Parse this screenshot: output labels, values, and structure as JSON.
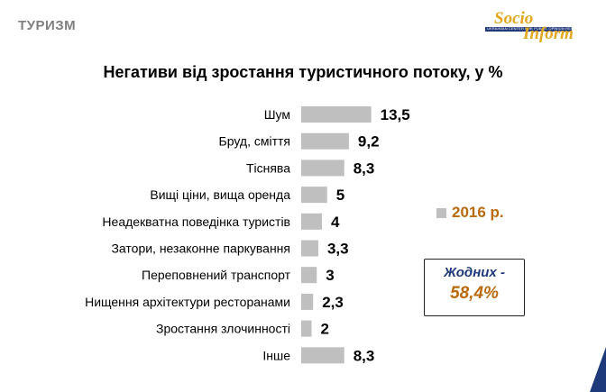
{
  "header": {
    "section_title": "ТУРИЗМ"
  },
  "logo": {
    "top": "Socio",
    "bottom": "Inform",
    "caption": "UKRAINIAN CENTER FOR PUBLIC OPINION RESEARCH"
  },
  "legend": {
    "label": "2016 р."
  },
  "note": {
    "line1": "Жодних -",
    "line2": "58,4%"
  },
  "colors": {
    "bar": "#bfbfbf",
    "accent": "#b96a0d",
    "navy": "#1f3a7a"
  },
  "chart_data": {
    "type": "bar",
    "orientation": "horizontal",
    "title": "Негативи від зростання туристичного потоку, у %",
    "categories": [
      "Шум",
      "Бруд, сміття",
      "Тіснява",
      "Вищі ціни, вища оренда",
      "Неадекватна поведінка туристів",
      "Затори, незаконне паркування",
      "Переповнений транспорт",
      "Нищення архітектури ресторанами",
      "Зростання злочинності",
      "Інше"
    ],
    "values": [
      13.5,
      9.2,
      8.3,
      5,
      4,
      3.3,
      3,
      2.3,
      2,
      8.3
    ],
    "value_labels": [
      "13,5",
      "9,2",
      "8,3",
      "5",
      "4",
      "3,3",
      "3",
      "2,3",
      "2",
      "8,3"
    ],
    "series": [
      {
        "name": "2016 р.",
        "values": [
          13.5,
          9.2,
          8.3,
          5,
          4,
          3.3,
          3,
          2.3,
          2,
          8.3
        ]
      }
    ],
    "legend": "right",
    "grid": false
  }
}
